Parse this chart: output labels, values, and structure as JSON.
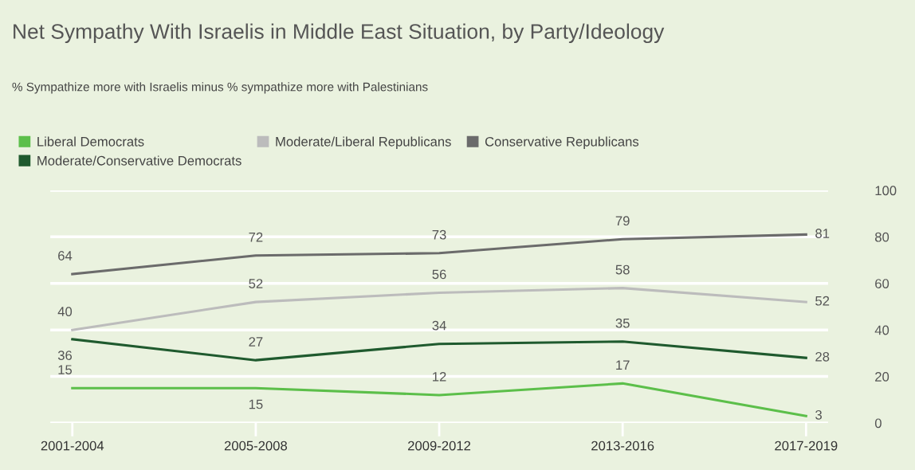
{
  "chart_data": {
    "type": "line",
    "title": "Net Sympathy With Israelis in Middle East Situation, by Party/Ideology",
    "subtitle": "% Sympathize more with Israelis minus % sympathize more with Palestinians",
    "categories": [
      "2001-2004",
      "2005-2008",
      "2009-2012",
      "2013-2016",
      "2017-2019"
    ],
    "series": [
      {
        "name": "Liberal Democrats",
        "color": "#5cbf4a",
        "values": [
          15,
          15,
          12,
          17,
          3
        ]
      },
      {
        "name": "Moderate/Conservative Democrats",
        "color": "#1f5a2e",
        "values": [
          36,
          27,
          34,
          35,
          28
        ]
      },
      {
        "name": "Moderate/Liberal Republicans",
        "color": "#bcbcbc",
        "values": [
          40,
          52,
          56,
          58,
          52
        ]
      },
      {
        "name": "Conservative Republicans",
        "color": "#6b6b6b",
        "values": [
          64,
          72,
          73,
          79,
          81
        ]
      }
    ],
    "ylim": [
      0,
      100
    ],
    "yticks": [
      0,
      20,
      40,
      60,
      80,
      100
    ],
    "grid": "y",
    "legend": "top left",
    "data_labels": true,
    "marker": "none",
    "line_style": "solid"
  }
}
